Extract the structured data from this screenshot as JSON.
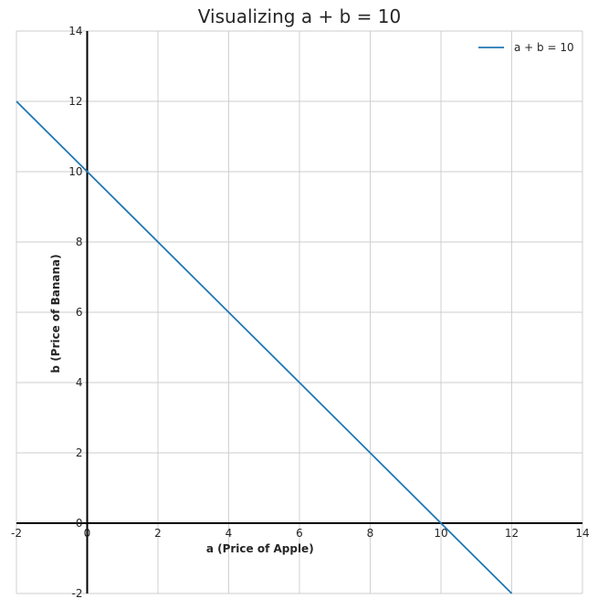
{
  "chart_data": {
    "type": "line",
    "title": "Visualizing a + b = 10",
    "xlabel": "a (Price of Apple)",
    "ylabel": "b (Price of Banana)",
    "xlim": [
      -2,
      14
    ],
    "ylim": [
      -2,
      14
    ],
    "xticks": [
      -2,
      0,
      2,
      4,
      6,
      8,
      10,
      12,
      14
    ],
    "yticks": [
      -2,
      0,
      2,
      4,
      6,
      8,
      10,
      12,
      14
    ],
    "grid": true,
    "legend_position": "top-right",
    "series": [
      {
        "name": "a + b = 10",
        "color": "#1f77b4",
        "x": [
          -2,
          12
        ],
        "y": [
          12,
          -2
        ]
      }
    ]
  }
}
